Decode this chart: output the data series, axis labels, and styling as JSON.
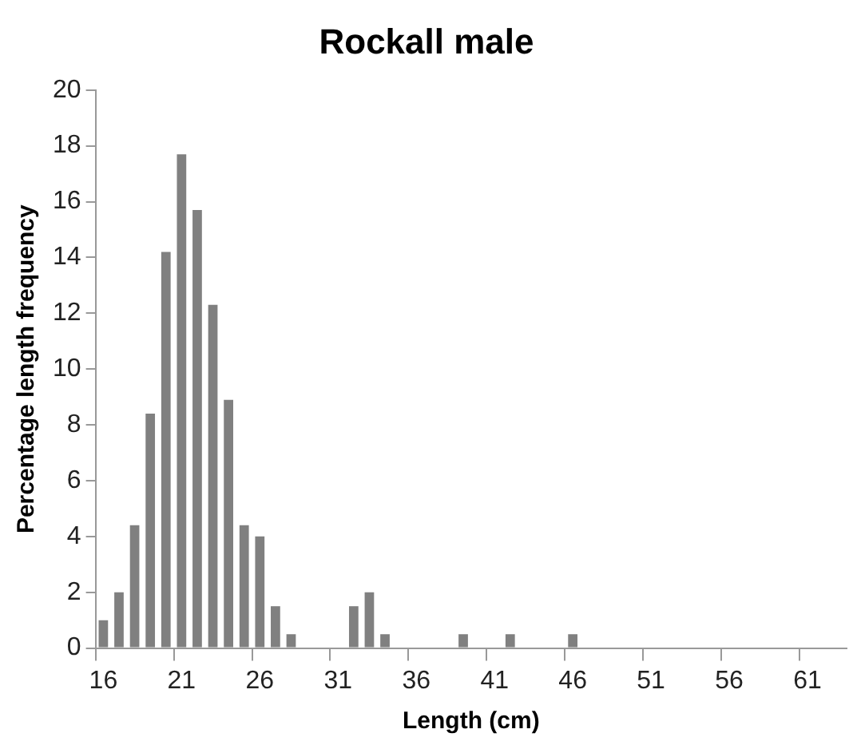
{
  "chart_data": {
    "type": "bar",
    "title": "Rockall male",
    "xlabel": "Length (cm)",
    "ylabel": "Percentage length frequency",
    "categories": [
      "16",
      null,
      null,
      null,
      null,
      "21",
      null,
      null,
      null,
      null,
      "26",
      null,
      null,
      null,
      null,
      "31",
      null,
      null,
      null,
      null,
      "36",
      null,
      null,
      null,
      null,
      "41",
      null,
      null,
      null,
      null,
      "46",
      null,
      null,
      null,
      null,
      "51",
      null,
      null,
      null,
      null,
      "56",
      null,
      null,
      null,
      null,
      "61",
      null,
      null
    ],
    "values": [
      1.0,
      2.0,
      4.4,
      8.4,
      14.2,
      17.7,
      15.7,
      12.3,
      8.9,
      4.4,
      4.0,
      1.5,
      0.5,
      0,
      0,
      0,
      1.5,
      2.0,
      0.5,
      0,
      0,
      0,
      0,
      0.5,
      0,
      0,
      0.5,
      0,
      0,
      0,
      0.5,
      0,
      0,
      0,
      0,
      0,
      0,
      0,
      0,
      0,
      0,
      0,
      0,
      0,
      0,
      0,
      0,
      0
    ],
    "color": "#808080",
    "ylim": [
      0,
      20
    ],
    "yticks": [
      0,
      2,
      4,
      6,
      8,
      10,
      12,
      14,
      16,
      18,
      20
    ],
    "grid": false,
    "legend": false
  }
}
